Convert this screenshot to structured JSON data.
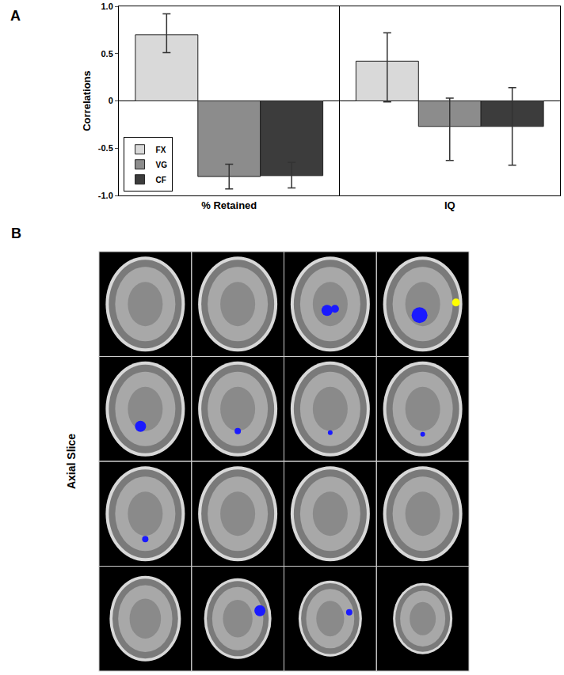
{
  "chart_data": {
    "type": "bar",
    "categories": [
      "% Retained",
      "IQ"
    ],
    "y_label": "Correlations",
    "annotations": [
      "A"
    ],
    "series": [
      {
        "name": "FX",
        "color": "#d9d9d9",
        "values": [
          0.7,
          0.42
        ],
        "error_plus": [
          0.22,
          0.3
        ],
        "error_minus": [
          0.19,
          0.43
        ]
      },
      {
        "name": "VG",
        "color": "#8c8c8c",
        "values": [
          -0.8,
          -0.27
        ],
        "error_plus": [
          0.13,
          0.3
        ],
        "error_minus": [
          0.13,
          0.36
        ]
      },
      {
        "name": "CF",
        "color": "#3c3c3c",
        "values": [
          -0.79,
          -0.27
        ],
        "error_plus": [
          0.14,
          0.41
        ],
        "error_minus": [
          0.13,
          0.41
        ]
      }
    ],
    "ylim": [
      -1,
      1
    ],
    "yticks": [
      {
        "value": -1,
        "label": "-1.0"
      },
      {
        "value": -0.5,
        "label": "-0.5"
      },
      0,
      {
        "value": 0.5,
        "label": "0.5"
      },
      {
        "value": 1,
        "label": "1.0"
      }
    ],
    "grid": false,
    "legend": "bottom left"
  },
  "panel_b": {
    "label": "B",
    "side_label": "Axial Slice",
    "rows": 4,
    "columns": 4
  }
}
